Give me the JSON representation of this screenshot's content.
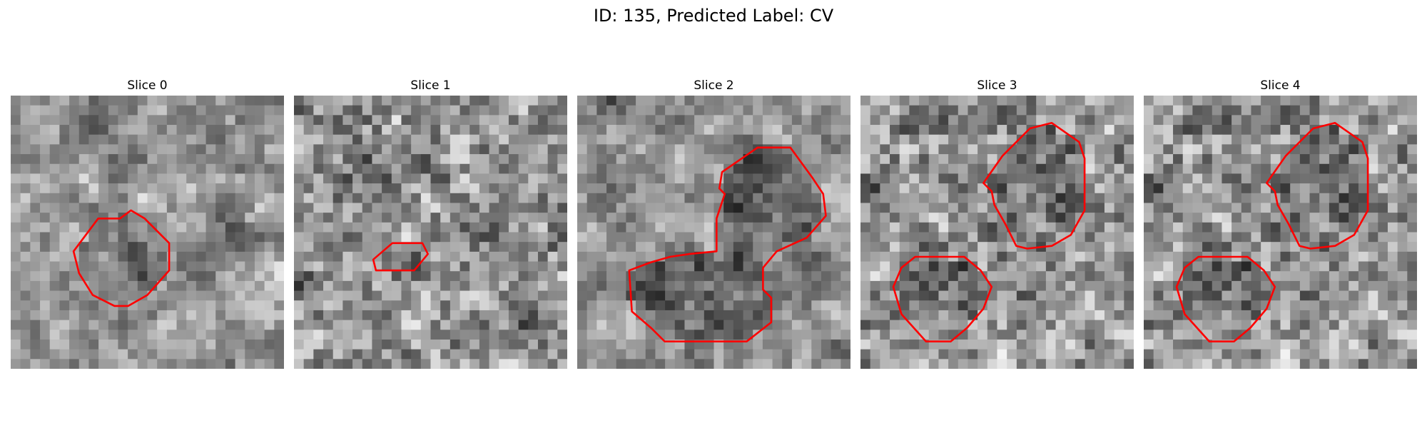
{
  "figure": {
    "title": "ID: 135, Predicted Label: CV"
  },
  "contour_color": "#ff0000",
  "panels": [
    {
      "title": "Slice 0",
      "seed": 11,
      "smooth": 2,
      "darkness": 0.55,
      "contours": [
        [
          [
            0.44,
            0.42
          ],
          [
            0.49,
            0.45
          ],
          [
            0.58,
            0.54
          ],
          [
            0.58,
            0.64
          ],
          [
            0.5,
            0.73
          ],
          [
            0.43,
            0.77
          ],
          [
            0.38,
            0.77
          ],
          [
            0.3,
            0.73
          ],
          [
            0.25,
            0.65
          ],
          [
            0.23,
            0.57
          ],
          [
            0.32,
            0.45
          ],
          [
            0.4,
            0.45
          ]
        ]
      ]
    },
    {
      "title": "Slice 1",
      "seed": 23,
      "smooth": 1,
      "darkness": 0.35,
      "contours": [
        [
          [
            0.36,
            0.54
          ],
          [
            0.47,
            0.54
          ],
          [
            0.49,
            0.58
          ],
          [
            0.44,
            0.64
          ],
          [
            0.3,
            0.64
          ],
          [
            0.29,
            0.6
          ]
        ]
      ]
    },
    {
      "title": "Slice 2",
      "seed": 37,
      "smooth": 2,
      "darkness": 0.75,
      "contours": [
        [
          [
            0.66,
            0.19
          ],
          [
            0.78,
            0.19
          ],
          [
            0.86,
            0.3
          ],
          [
            0.9,
            0.36
          ],
          [
            0.91,
            0.44
          ],
          [
            0.84,
            0.52
          ],
          [
            0.73,
            0.57
          ],
          [
            0.68,
            0.63
          ],
          [
            0.68,
            0.71
          ],
          [
            0.71,
            0.74
          ],
          [
            0.71,
            0.83
          ],
          [
            0.62,
            0.9
          ],
          [
            0.32,
            0.9
          ],
          [
            0.27,
            0.85
          ],
          [
            0.2,
            0.79
          ],
          [
            0.19,
            0.64
          ],
          [
            0.27,
            0.61
          ],
          [
            0.34,
            0.59
          ],
          [
            0.41,
            0.58
          ],
          [
            0.51,
            0.57
          ],
          [
            0.51,
            0.45
          ],
          [
            0.54,
            0.36
          ],
          [
            0.52,
            0.34
          ],
          [
            0.53,
            0.28
          ]
        ]
      ]
    },
    {
      "title": "Slice 3",
      "seed": 51,
      "smooth": 1,
      "darkness": 0.45,
      "contours": [
        [
          [
            0.7,
            0.1
          ],
          [
            0.8,
            0.17
          ],
          [
            0.82,
            0.23
          ],
          [
            0.82,
            0.42
          ],
          [
            0.77,
            0.51
          ],
          [
            0.7,
            0.55
          ],
          [
            0.61,
            0.56
          ],
          [
            0.57,
            0.55
          ],
          [
            0.53,
            0.47
          ],
          [
            0.49,
            0.4
          ],
          [
            0.48,
            0.35
          ],
          [
            0.45,
            0.32
          ],
          [
            0.52,
            0.22
          ],
          [
            0.62,
            0.12
          ]
        ],
        [
          [
            0.2,
            0.59
          ],
          [
            0.38,
            0.59
          ],
          [
            0.44,
            0.64
          ],
          [
            0.48,
            0.7
          ],
          [
            0.45,
            0.78
          ],
          [
            0.39,
            0.85
          ],
          [
            0.33,
            0.9
          ],
          [
            0.24,
            0.9
          ],
          [
            0.15,
            0.8
          ],
          [
            0.12,
            0.7
          ],
          [
            0.15,
            0.63
          ]
        ]
      ]
    },
    {
      "title": "Slice 4",
      "seed": 51,
      "smooth": 1,
      "darkness": 0.45,
      "contours": [
        [
          [
            0.7,
            0.1
          ],
          [
            0.8,
            0.17
          ],
          [
            0.82,
            0.23
          ],
          [
            0.82,
            0.42
          ],
          [
            0.77,
            0.51
          ],
          [
            0.7,
            0.55
          ],
          [
            0.61,
            0.56
          ],
          [
            0.57,
            0.55
          ],
          [
            0.53,
            0.47
          ],
          [
            0.49,
            0.4
          ],
          [
            0.48,
            0.35
          ],
          [
            0.45,
            0.32
          ],
          [
            0.52,
            0.22
          ],
          [
            0.62,
            0.12
          ]
        ],
        [
          [
            0.2,
            0.59
          ],
          [
            0.38,
            0.59
          ],
          [
            0.44,
            0.64
          ],
          [
            0.48,
            0.7
          ],
          [
            0.45,
            0.78
          ],
          [
            0.39,
            0.85
          ],
          [
            0.33,
            0.9
          ],
          [
            0.24,
            0.9
          ],
          [
            0.15,
            0.8
          ],
          [
            0.12,
            0.7
          ],
          [
            0.15,
            0.63
          ]
        ]
      ]
    }
  ]
}
